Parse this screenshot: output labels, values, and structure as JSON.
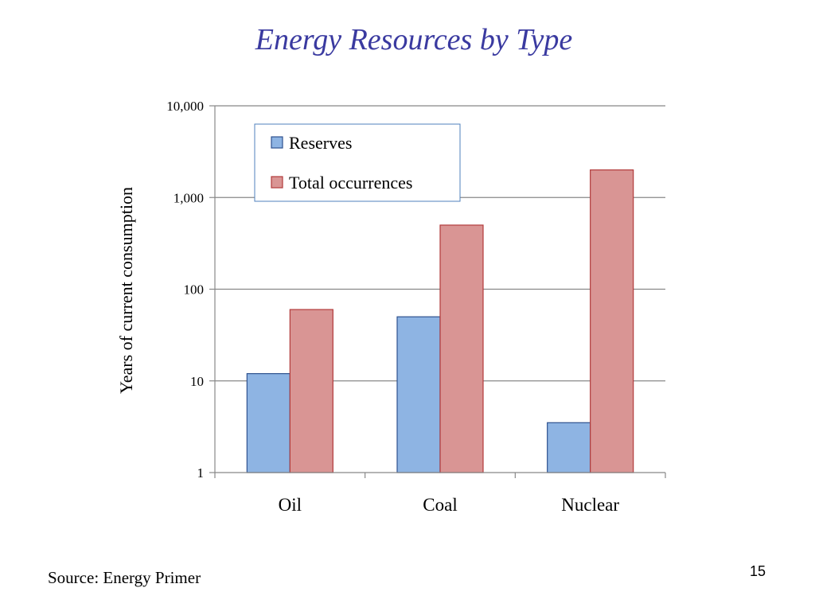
{
  "slide": {
    "title": "Energy Resources by Type",
    "source": "Source: Energy Primer",
    "page_number": "15"
  },
  "colors": {
    "title": "#3a3aa0",
    "reserves_fill": "#8eb4e3",
    "reserves_stroke": "#2f528f",
    "total_fill": "#d99594",
    "total_stroke": "#b23b3b",
    "grid": "#888888",
    "legend_border": "#4f81bd"
  },
  "chart_data": {
    "type": "bar",
    "title": "",
    "ylabel": "Years of current consumption",
    "xlabel": "",
    "yscale": "log",
    "ylim": [
      1,
      10000
    ],
    "yticks": [
      {
        "value": 1,
        "label": "1"
      },
      {
        "value": 10,
        "label": "10"
      },
      {
        "value": 100,
        "label": "100"
      },
      {
        "value": 1000,
        "label": "1,000"
      },
      {
        "value": 10000,
        "label": "10,000"
      }
    ],
    "grid": true,
    "legend_position": "top-left-inside",
    "categories": [
      "Oil",
      "Coal",
      "Nuclear"
    ],
    "series": [
      {
        "name": "Reserves",
        "values": [
          12,
          50,
          3.5
        ]
      },
      {
        "name": "Total occurrences",
        "values": [
          60,
          500,
          2000
        ]
      }
    ]
  }
}
